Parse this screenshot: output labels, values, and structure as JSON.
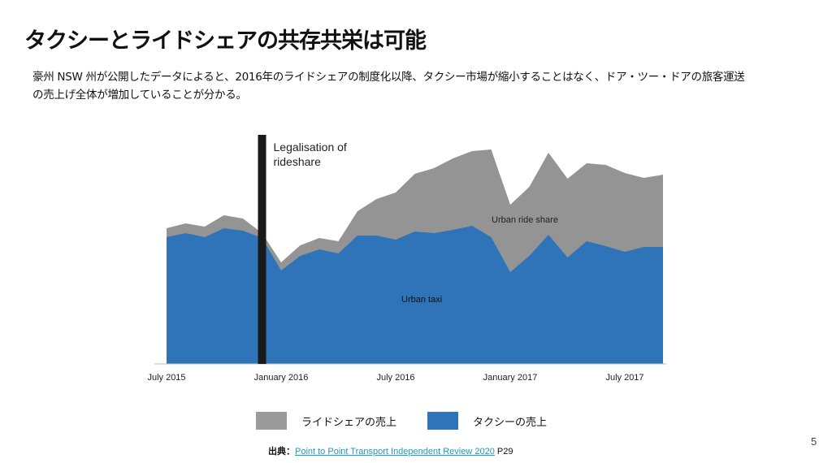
{
  "title": "タクシーとライドシェアの共存共栄は可能",
  "description": "豪州 NSW 州が公開したデータによると、2016年のライドシェアの制度化以降、タクシー市場が縮小することはなく、ドア・ツー・ドアの旅客運送の売上げ全体が増加していることが分かる。",
  "legend": [
    {
      "label": "ライドシェアの売上",
      "color": "#9b9b9b"
    },
    {
      "label": "タクシーの売上",
      "color": "#2f73b8"
    }
  ],
  "source": {
    "prefix": "出典：",
    "link_text": "Point to Point Transport Independent Review 2020",
    "suffix": " P29"
  },
  "page_number": "5",
  "chart_data": {
    "type": "area",
    "stacked": true,
    "x_unit": "months since July 2015",
    "x": [
      0,
      1,
      2,
      3,
      4,
      5,
      6,
      7,
      8,
      9,
      10,
      11,
      12,
      13,
      14,
      15,
      16,
      17,
      18,
      19,
      20,
      21,
      22,
      23,
      24,
      25,
      26
    ],
    "series": [
      {
        "name": "Urban taxi",
        "color": "#2f73b8",
        "values": [
          156,
          161,
          156,
          167,
          164,
          155,
          115,
          133,
          141,
          136,
          158,
          158,
          153,
          163,
          161,
          165,
          170,
          156,
          113,
          133,
          159,
          131,
          151,
          145,
          138,
          144,
          144
        ]
      },
      {
        "name": "Urban ride share",
        "color": "#949494",
        "values": [
          11,
          12,
          13,
          16,
          15,
          6,
          10,
          13,
          14,
          15,
          30,
          45,
          58,
          71,
          80,
          88,
          92,
          108,
          83,
          85,
          101,
          97,
          96,
          100,
          97,
          85,
          89
        ]
      }
    ],
    "x_ticks": [
      {
        "x": 0,
        "label": "July 2015"
      },
      {
        "x": 6,
        "label": "January 2016"
      },
      {
        "x": 12,
        "label": "July 2016"
      },
      {
        "x": 18,
        "label": "January 2017"
      },
      {
        "x": 24,
        "label": "July 2017"
      }
    ],
    "ylim": [
      0,
      290
    ],
    "annotations": [
      {
        "x": 5,
        "label_line1": "Legalisation of",
        "label_line2": "rideshare"
      }
    ],
    "area_labels": {
      "taxi": "Urban taxi",
      "rideshare": "Urban ride share"
    },
    "grid": false
  }
}
